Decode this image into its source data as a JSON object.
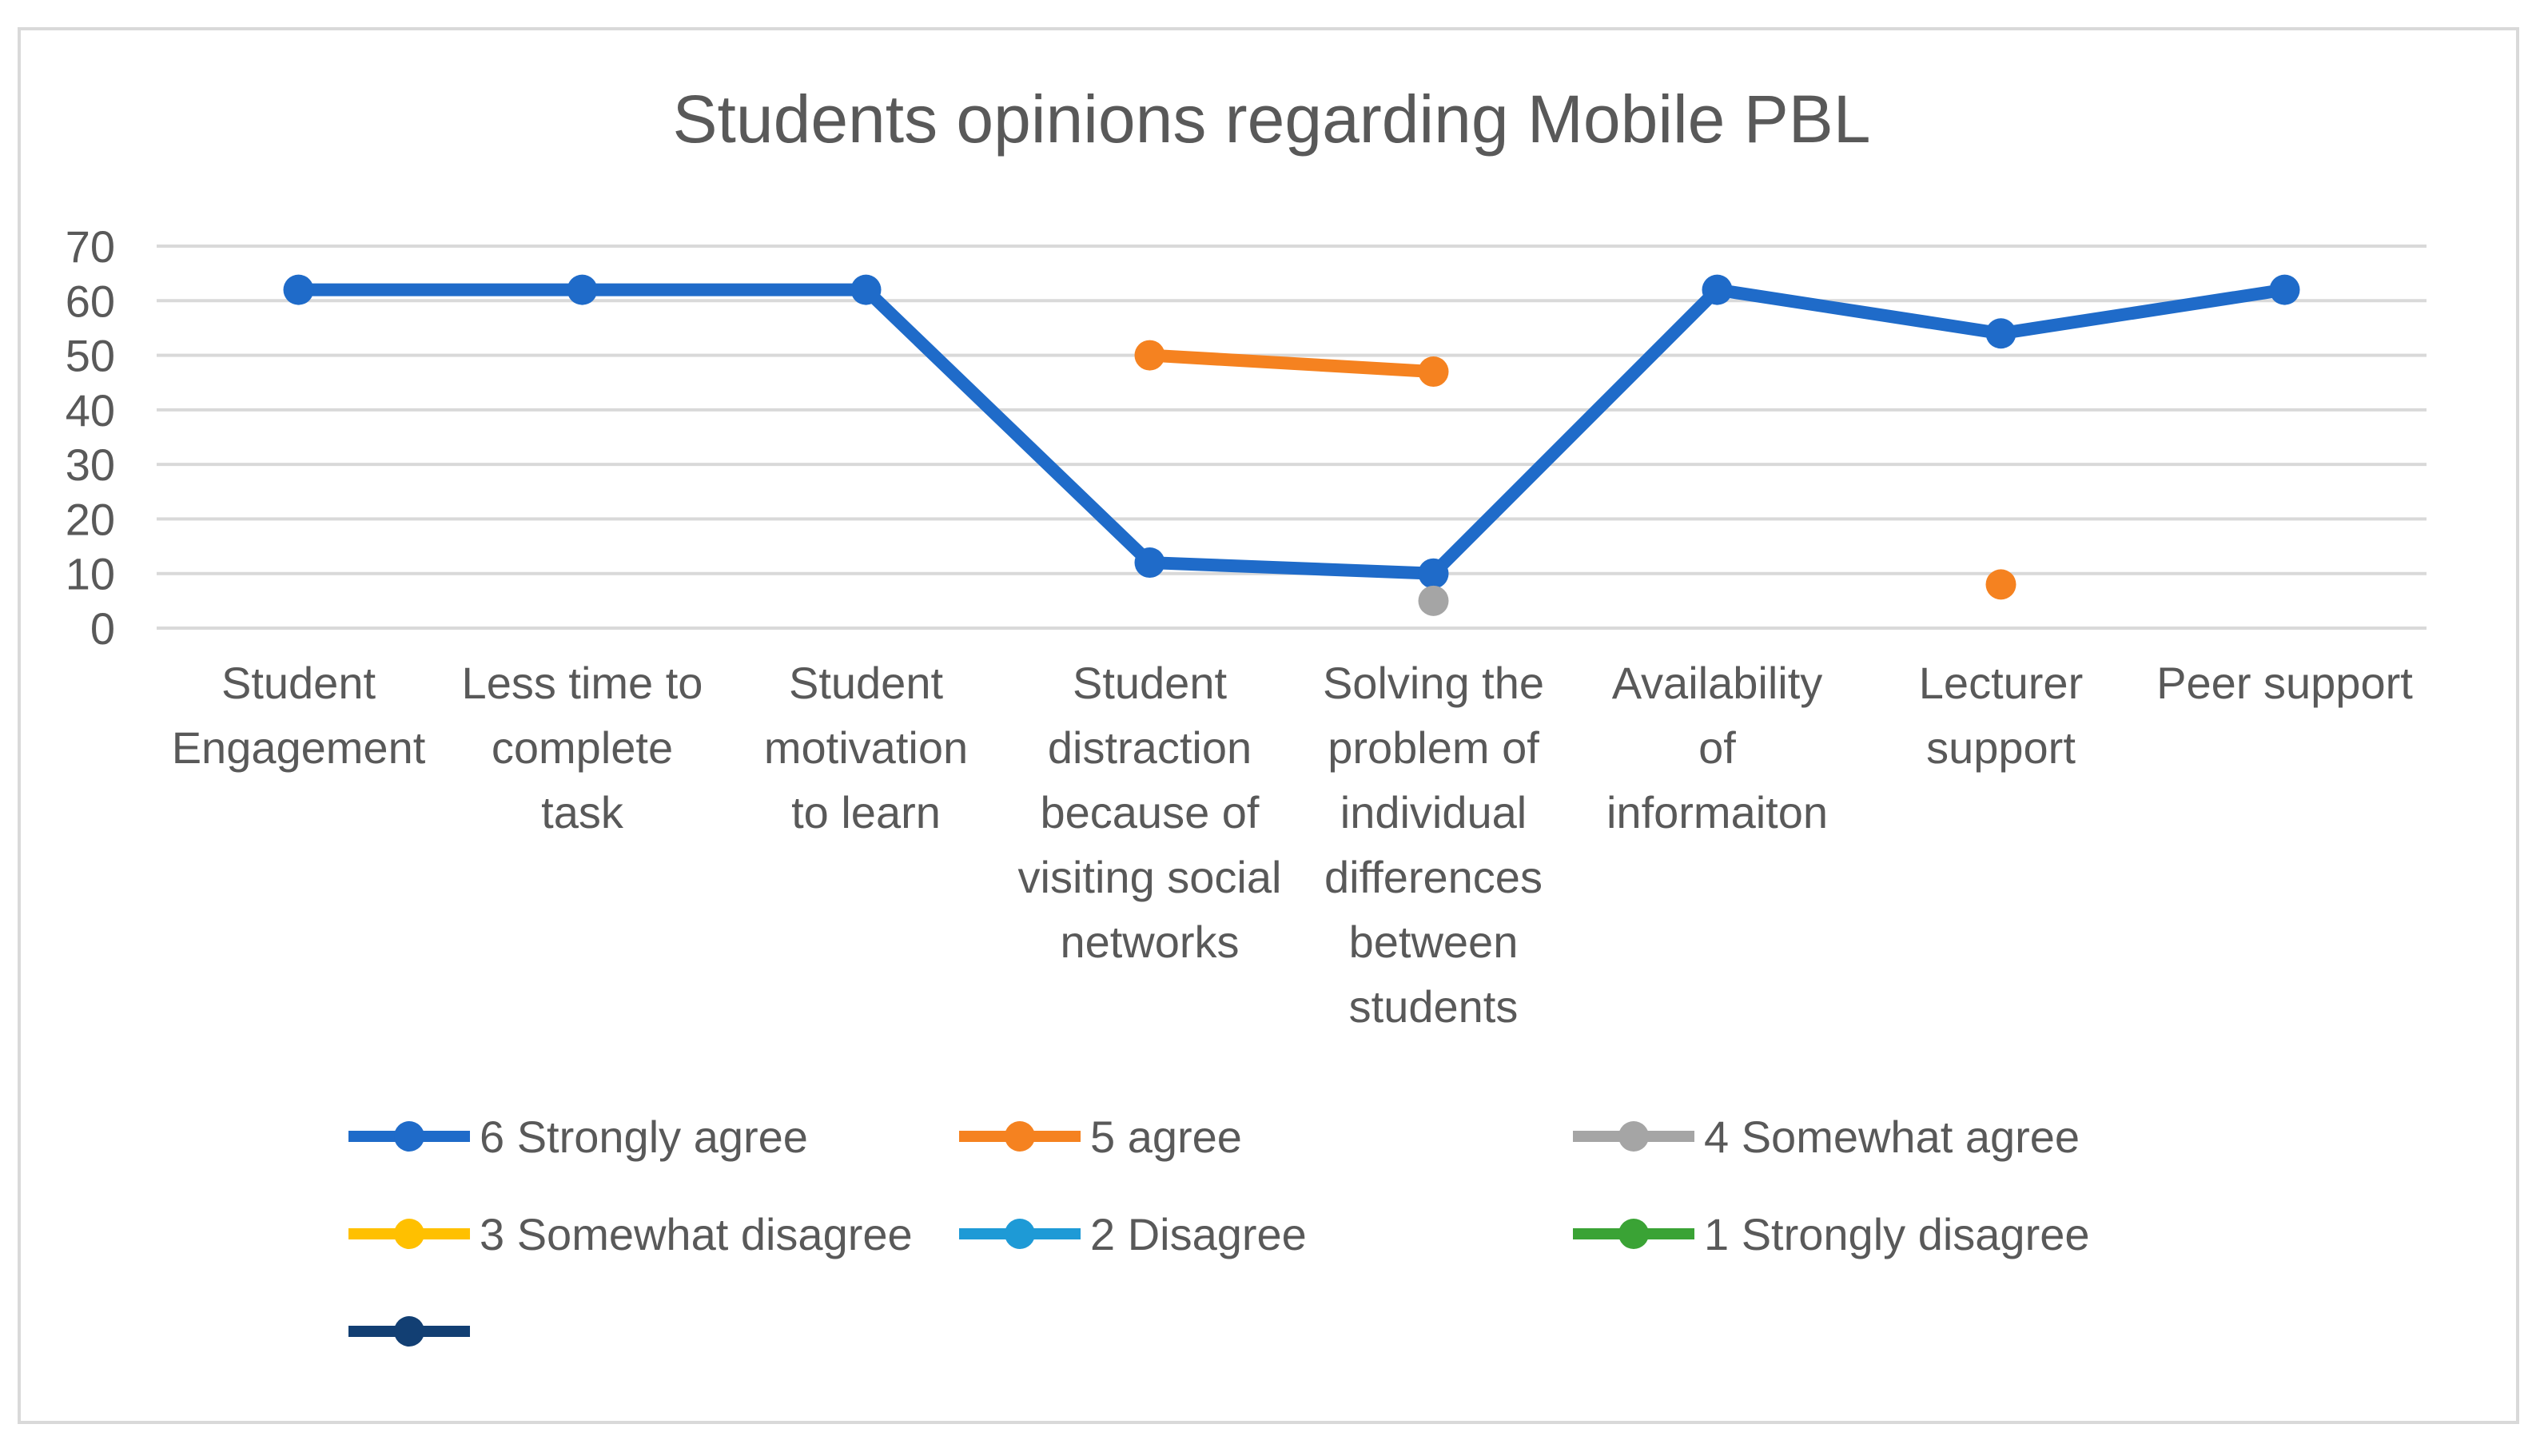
{
  "chart_data": {
    "type": "line",
    "title": "Students opinions regarding Mobile PBL",
    "ylim": [
      0,
      70
    ],
    "yticks": [
      0,
      10,
      20,
      30,
      40,
      50,
      60,
      70
    ],
    "grid": true,
    "legend_position": "bottom",
    "categories": [
      [
        "Student",
        "Engagement"
      ],
      [
        "Less time to",
        "complete",
        "task"
      ],
      [
        "Student",
        "motivation",
        "to learn"
      ],
      [
        "Student",
        "distraction",
        "because of",
        "visiting social",
        "networks"
      ],
      [
        "Solving the",
        "problem of",
        "individual",
        "differences",
        "between",
        "students"
      ],
      [
        "Availability",
        "of",
        "informaiton"
      ],
      [
        "Lecturer",
        "support"
      ],
      [
        "Peer support"
      ]
    ],
    "series": [
      {
        "name": "6 Strongly agree",
        "color": "#1f6bc9",
        "values": [
          62,
          62,
          62,
          12,
          10,
          62,
          54,
          62
        ]
      },
      {
        "name": "5 agree",
        "color": "#f58220",
        "values": [
          null,
          null,
          null,
          50,
          47,
          null,
          8,
          null
        ]
      },
      {
        "name": "4 Somewhat agree",
        "color": "#a5a5a5",
        "values": [
          null,
          null,
          null,
          null,
          5,
          null,
          null,
          null
        ]
      },
      {
        "name": "3 Somewhat disagree",
        "color": "#ffc000",
        "values": [
          null,
          null,
          null,
          null,
          null,
          null,
          null,
          null
        ]
      },
      {
        "name": "2 Disagree",
        "color": "#1e9ad6",
        "values": [
          null,
          null,
          null,
          null,
          null,
          null,
          null,
          null
        ]
      },
      {
        "name": "1 Strongly disagree",
        "color": "#3aa335",
        "values": [
          null,
          null,
          null,
          null,
          null,
          null,
          null,
          null
        ]
      },
      {
        "name": "",
        "color": "#123f73",
        "values": [
          null,
          null,
          null,
          null,
          null,
          null,
          null,
          null
        ]
      }
    ]
  }
}
